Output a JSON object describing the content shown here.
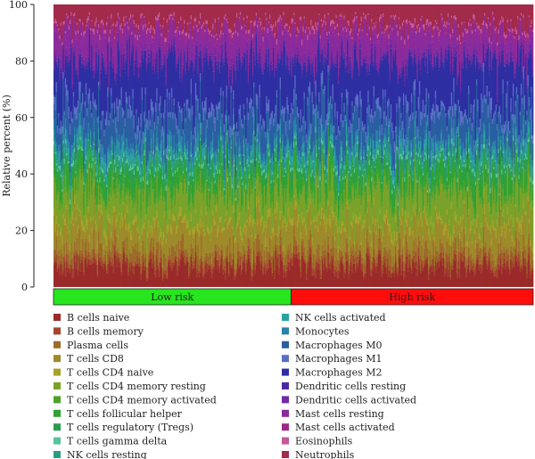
{
  "chart_data": {
    "type": "bar",
    "stacked": true,
    "ylabel": "Relative percent (%)",
    "ylim": [
      0,
      100
    ],
    "yticks": [
      0,
      20,
      40,
      60,
      80,
      100
    ],
    "sample_count": 420,
    "groups": [
      {
        "label": "Low risk",
        "color": "#27e51e",
        "count": 208
      },
      {
        "label": "High risk",
        "color": "#ff0d0d",
        "count": 212
      }
    ],
    "series": [
      {
        "name": "B cells naive",
        "color": "#9a2a2a",
        "mean": 7
      },
      {
        "name": "B cells memory",
        "color": "#a4452c",
        "mean": 2
      },
      {
        "name": "Plasma cells",
        "color": "#9d6a2a",
        "mean": 4
      },
      {
        "name": "T cells CD8",
        "color": "#9d8a2a",
        "mean": 8
      },
      {
        "name": "T cells CD4 naive",
        "color": "#a8a228",
        "mean": 2
      },
      {
        "name": "T cells CD4 memory resting",
        "color": "#7aa22a",
        "mean": 10
      },
      {
        "name": "T cells CD4 memory activated",
        "color": "#4ea22a",
        "mean": 2
      },
      {
        "name": "T cells follicular helper",
        "color": "#2ea232",
        "mean": 5
      },
      {
        "name": "T cells regulatory (Tregs)",
        "color": "#2a9c52",
        "mean": 3
      },
      {
        "name": "T cells gamma delta",
        "color": "#55c49a",
        "mean": 1
      },
      {
        "name": "NK cells resting",
        "color": "#2a9c86",
        "mean": 2
      },
      {
        "name": "NK cells activated",
        "color": "#2aa2a2",
        "mean": 2
      },
      {
        "name": "Monocytes",
        "color": "#2a82a8",
        "mean": 3
      },
      {
        "name": "Macrophages M0",
        "color": "#2a5ea2",
        "mean": 10
      },
      {
        "name": "Macrophages M1",
        "color": "#5a6ec4",
        "mean": 3
      },
      {
        "name": "Macrophages M2",
        "color": "#2d2ea2",
        "mean": 15
      },
      {
        "name": "Dendritic cells resting",
        "color": "#4a2aa2",
        "mean": 1
      },
      {
        "name": "Dendritic cells activated",
        "color": "#722aa2",
        "mean": 2
      },
      {
        "name": "Mast cells resting",
        "color": "#8a2a9c",
        "mean": 8
      },
      {
        "name": "Mast cells activated",
        "color": "#9c2a86",
        "mean": 2
      },
      {
        "name": "Eosinophils",
        "color": "#c4589a",
        "mean": 1
      },
      {
        "name": "Neutrophils",
        "color": "#a22a4a",
        "mean": 7
      }
    ]
  }
}
